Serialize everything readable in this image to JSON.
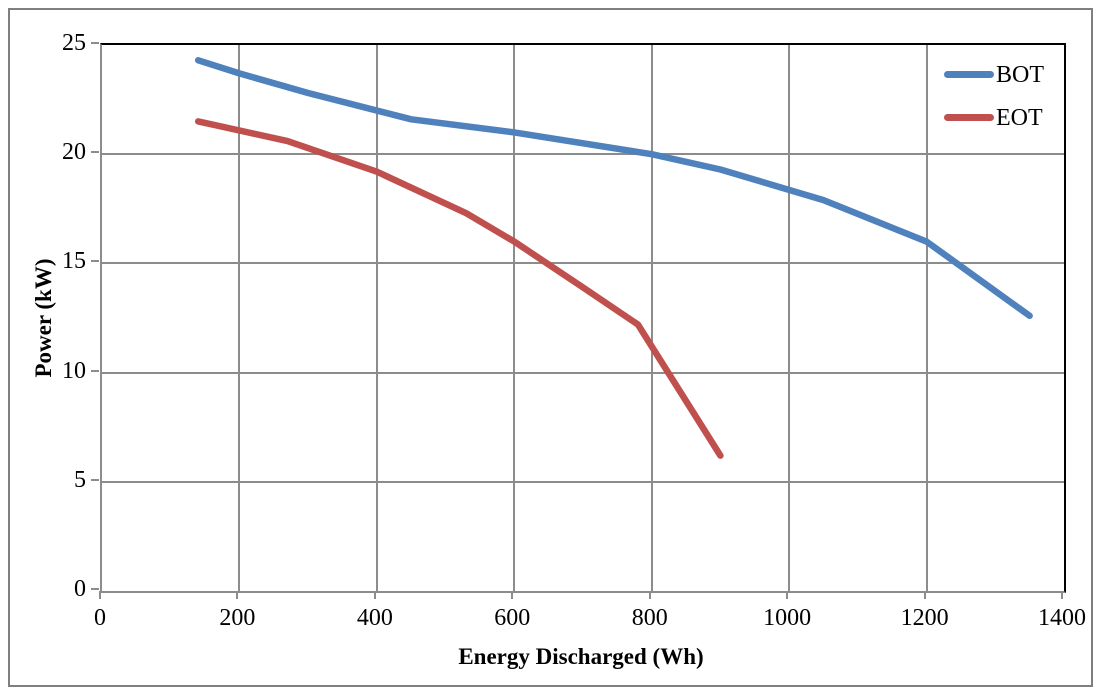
{
  "figure": {
    "background": "#ffffff",
    "outer_border_color": "#7f7f7f",
    "plot_border_dark": "#000000",
    "axis_color": "#8c8c8c",
    "gridline_color": "#8c8c8c"
  },
  "chart_data": {
    "type": "line",
    "title": "",
    "xlabel": "Energy Discharged (Wh)",
    "ylabel": "Power (kW)",
    "xlim": [
      0,
      1400
    ],
    "ylim": [
      0,
      25
    ],
    "x_ticks": [
      0,
      200,
      400,
      600,
      800,
      1000,
      1200,
      1400
    ],
    "y_ticks": [
      0,
      5,
      10,
      15,
      20,
      25
    ],
    "grid": "on",
    "legend_position": "top-right-inside",
    "series": [
      {
        "name": "BOT",
        "color": "#4F81BD",
        "points": [
          [
            140,
            24.3
          ],
          [
            200,
            23.7
          ],
          [
            300,
            22.8
          ],
          [
            450,
            21.6
          ],
          [
            600,
            21.0
          ],
          [
            800,
            20.0
          ],
          [
            900,
            19.3
          ],
          [
            1050,
            17.9
          ],
          [
            1200,
            16.0
          ],
          [
            1350,
            12.6
          ]
        ]
      },
      {
        "name": "EOT",
        "color": "#C0504D",
        "points": [
          [
            140,
            21.5
          ],
          [
            270,
            20.6
          ],
          [
            400,
            19.2
          ],
          [
            530,
            17.3
          ],
          [
            600,
            16.0
          ],
          [
            700,
            13.9
          ],
          [
            780,
            12.2
          ],
          [
            900,
            6.2
          ]
        ]
      }
    ]
  }
}
